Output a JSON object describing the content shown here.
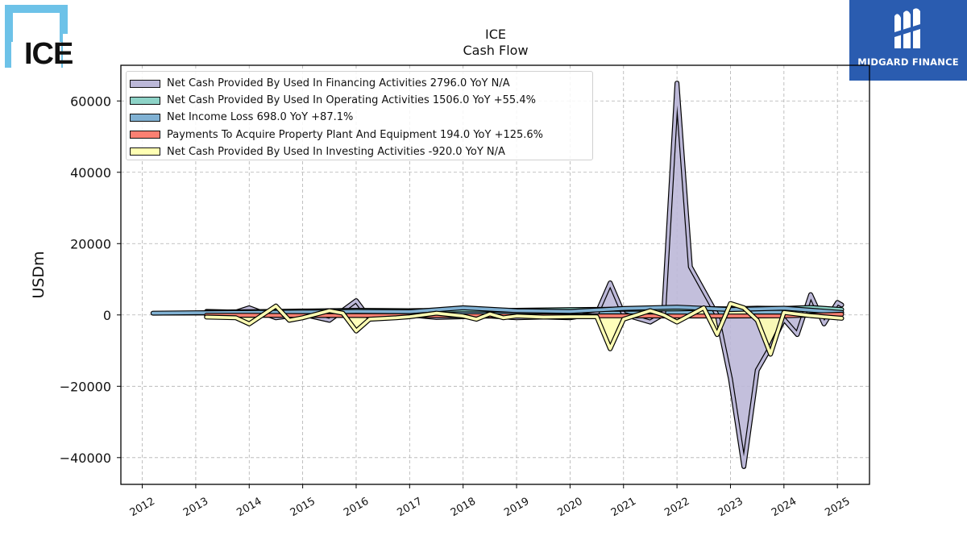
{
  "chart_data": {
    "type": "line",
    "title": "ICE",
    "subtitle": "Cash Flow",
    "ylabel": "USDm",
    "xlabel": "",
    "ylim": [
      -47500,
      70000
    ],
    "xlim": [
      2011.6,
      2025.6
    ],
    "x_ticks": [
      2012,
      2013,
      2014,
      2015,
      2016,
      2017,
      2018,
      2019,
      2020,
      2021,
      2022,
      2023,
      2024,
      2025
    ],
    "y_ticks": [
      -40000,
      -20000,
      0,
      20000,
      40000,
      60000
    ],
    "x_tick_labels": [
      "2012",
      "2013",
      "2014",
      "2015",
      "2016",
      "2017",
      "2018",
      "2019",
      "2020",
      "2021",
      "2022",
      "2023",
      "2024",
      "2025"
    ],
    "y_tick_labels": [
      "−40000",
      "−20000",
      "0",
      "20000",
      "40000",
      "60000"
    ],
    "grid": true,
    "legend_position": "top-left",
    "series": [
      {
        "name": "Net Cash Provided By Used In Financing Activities",
        "legend": "Net Cash Provided By Used In Financing Activities  2796.0 YoY N/A",
        "color": "#bcb8d8",
        "x": [
          2013.2,
          2013.75,
          2014.0,
          2014.5,
          2014.75,
          2015.0,
          2015.5,
          2016.0,
          2016.25,
          2016.75,
          2017.0,
          2017.5,
          2018.0,
          2018.5,
          2019.0,
          2019.5,
          2020.0,
          2020.5,
          2020.75,
          2021.0,
          2021.5,
          2021.75,
          2022.0,
          2022.25,
          2022.75,
          2023.0,
          2023.25,
          2023.5,
          2023.75,
          2024.0,
          2024.25,
          2024.5,
          2024.75,
          2025.0,
          2025.08
        ],
        "values": [
          1000,
          800,
          2000,
          -800,
          -300,
          200,
          -1500,
          4000,
          -1000,
          -300,
          0,
          -700,
          -500,
          -300,
          -800,
          -600,
          -800,
          400,
          9000,
          200,
          -2000,
          200,
          65000,
          13500,
          0,
          -18000,
          -42500,
          -15500,
          -9000,
          -1200,
          -5500,
          5700,
          -2500,
          3500,
          2796
        ]
      },
      {
        "name": "Net Cash Provided By Used In Operating Activities",
        "legend": "Net Cash Provided By Used In Operating Activities  1506.0 YoY +55.4%",
        "color": "#8dd3c7",
        "x": [
          2013.2,
          2014.0,
          2015.0,
          2016.0,
          2017.0,
          2018.0,
          2019.0,
          2020.0,
          2021.0,
          2022.0,
          2022.5,
          2023.0,
          2023.5,
          2024.0,
          2024.5,
          2025.08
        ],
        "values": [
          800,
          900,
          1100,
          1300,
          1200,
          1400,
          1300,
          1500,
          1600,
          1700,
          1800,
          1700,
          1900,
          1800,
          2100,
          1506
        ]
      },
      {
        "name": "Net Income Loss",
        "legend": "Net Income Loss  698.0 YoY +87.1%",
        "color": "#80b1d3",
        "x": [
          2012.2,
          2013.0,
          2014.0,
          2015.0,
          2016.0,
          2017.0,
          2018.0,
          2019.0,
          2020.0,
          2021.0,
          2022.0,
          2023.0,
          2024.0,
          2025.08
        ],
        "values": [
          500,
          600,
          700,
          800,
          1000,
          900,
          2000,
          1200,
          1000,
          1800,
          2200,
          1500,
          1900,
          698
        ]
      },
      {
        "name": "Payments To Acquire Property Plant And Equipment",
        "legend": "Payments To Acquire Property Plant And Equipment  194.0 YoY +125.6%",
        "color": "#fb8072",
        "x": [
          2013.2,
          2014.0,
          2015.0,
          2016.0,
          2017.0,
          2018.0,
          2019.0,
          2020.0,
          2021.0,
          2022.0,
          2023.0,
          2024.0,
          2025.08
        ],
        "values": [
          -100,
          -100,
          -150,
          -150,
          -200,
          -200,
          -200,
          -250,
          -250,
          -300,
          -300,
          -250,
          194
        ]
      },
      {
        "name": "Net Cash Provided By Used In Investing Activities",
        "legend": "Net Cash Provided By Used In Investing Activities  -920.0 YoY N/A",
        "color": "#ffffb3",
        "x": [
          2013.2,
          2013.75,
          2014.0,
          2014.5,
          2014.75,
          2015.0,
          2015.5,
          2015.75,
          2016.0,
          2016.25,
          2016.75,
          2017.0,
          2017.5,
          2018.0,
          2018.25,
          2018.5,
          2018.75,
          2019.0,
          2019.5,
          2020.0,
          2020.5,
          2020.75,
          2021.0,
          2021.5,
          2021.75,
          2022.0,
          2022.5,
          2022.75,
          2023.0,
          2023.25,
          2023.5,
          2023.75,
          2024.0,
          2024.5,
          2025.08
        ],
        "values": [
          -600,
          -800,
          -2500,
          2500,
          -1500,
          -800,
          1200,
          500,
          -4500,
          -1200,
          -800,
          -500,
          500,
          -300,
          -1200,
          300,
          -800,
          -300,
          -600,
          -500,
          -500,
          -9500,
          -1200,
          1200,
          0,
          -2000,
          2000,
          -5500,
          3200,
          2000,
          -1500,
          -11000,
          700,
          -200,
          -920
        ]
      }
    ]
  }
}
